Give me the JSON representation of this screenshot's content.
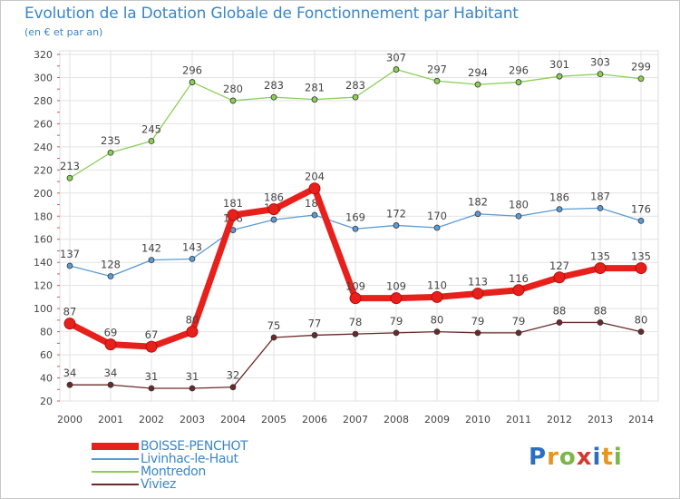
{
  "header": {
    "title": "Evolution de la Dotation Globale de Fonctionnement par Habitant",
    "subtitle": "(en € et par an)"
  },
  "logo": {
    "letters": [
      "P",
      "r",
      "o",
      "x",
      "i",
      "t",
      "i"
    ],
    "colors": [
      "#2b6fc0",
      "#e8951c",
      "#7ab648",
      "#d23b2f",
      "#2b6fc0",
      "#e8951c",
      "#7ab648"
    ]
  },
  "chart_data": {
    "type": "line",
    "title": "Evolution de la Dotation Globale de Fonctionnement par Habitant",
    "subtitle": "(en € et par an)",
    "x": [
      "2000",
      "2001",
      "2002",
      "2003",
      "2004",
      "2005",
      "2006",
      "2007",
      "2008",
      "2009",
      "2010",
      "2011",
      "2012",
      "2013",
      "2014"
    ],
    "ylim": [
      20,
      320
    ],
    "yticks": [
      20,
      40,
      60,
      80,
      100,
      120,
      140,
      160,
      180,
      200,
      220,
      240,
      260,
      280,
      300,
      320
    ],
    "grid": true,
    "legend_position": "bottom-left",
    "series": [
      {
        "name": "BOISSE-PENCHOT",
        "color": "#e8201c",
        "highlight": true,
        "values": [
          87,
          69,
          67,
          80,
          181,
          186,
          204,
          109,
          109,
          110,
          113,
          116,
          127,
          135,
          135
        ]
      },
      {
        "name": "Livinhac-le-Haut",
        "color": "#5b9bd5",
        "highlight": false,
        "values": [
          137,
          128,
          142,
          143,
          168,
          177,
          181,
          169,
          172,
          170,
          182,
          180,
          186,
          187,
          176
        ]
      },
      {
        "name": "Montredon",
        "color": "#8ccf57",
        "highlight": false,
        "values": [
          213,
          235,
          245,
          296,
          280,
          283,
          281,
          283,
          307,
          297,
          294,
          296,
          301,
          303,
          299
        ]
      },
      {
        "name": "Viviez",
        "color": "#6b2a2a",
        "highlight": false,
        "values": [
          34,
          34,
          31,
          31,
          32,
          75,
          77,
          78,
          79,
          80,
          79,
          79,
          88,
          88,
          80
        ]
      }
    ]
  }
}
